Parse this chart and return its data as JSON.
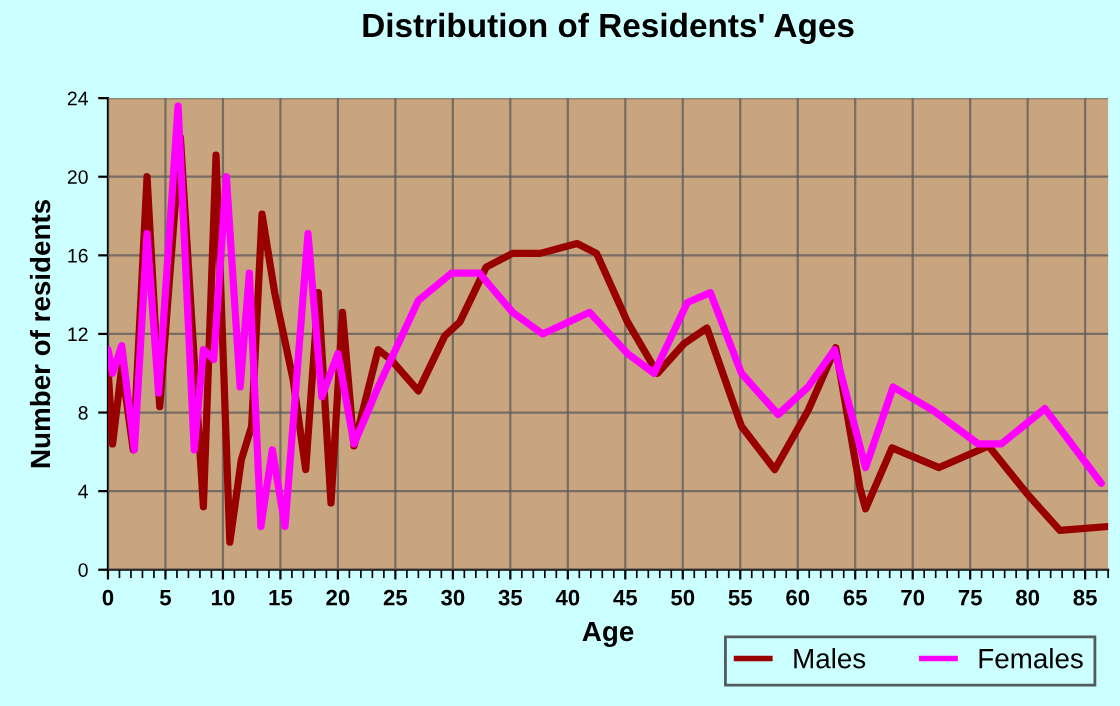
{
  "chart_data": {
    "type": "line",
    "title": "Distribution of Residents' Ages",
    "xlabel": "Age",
    "ylabel": "Number of residents",
    "xlim": [
      0,
      87
    ],
    "xticks": [
      0,
      5,
      10,
      15,
      20,
      25,
      30,
      35,
      40,
      45,
      50,
      55,
      60,
      65,
      70,
      75,
      80,
      85
    ],
    "ylim": [
      0,
      24
    ],
    "yticks": [
      0,
      4,
      8,
      12,
      16,
      20,
      24
    ],
    "grid": true,
    "legend": "bottom right",
    "line_style": "solid",
    "marker": "none",
    "series": [
      {
        "name": "Males",
        "color": "#990000",
        "x": [
          0,
          0.4,
          1.2,
          2.2,
          3.4,
          4.5,
          6.3,
          8.3,
          9.4,
          10.6,
          11.6,
          12.5,
          13.4,
          14.5,
          16.1,
          17.2,
          18.3,
          19.4,
          20.4,
          21.4,
          23.5,
          24.6,
          27,
          29.3,
          30.6,
          32.9,
          35.2,
          37.6,
          40.8,
          42.5,
          45.2,
          47.8,
          50.1,
          52.1,
          55.1,
          58,
          60.9,
          63.3,
          65.4,
          65.9,
          68.2,
          72.3,
          76.6,
          79.9,
          82.8,
          87
        ],
        "values": [
          10.3,
          6.4,
          10.3,
          6.1,
          20,
          8.3,
          22,
          3.2,
          21.1,
          1.4,
          5.6,
          7.3,
          18.1,
          14.1,
          9.7,
          5.1,
          14.1,
          3.4,
          13.1,
          6.3,
          11.2,
          10.7,
          9.1,
          11.9,
          12.6,
          15.4,
          16.1,
          16.1,
          16.6,
          16.1,
          12.6,
          10,
          11.5,
          12.3,
          7.3,
          5.1,
          8.1,
          11.3,
          4.2,
          3.1,
          6.2,
          5.2,
          6.3,
          3.9,
          2,
          2.2
        ]
      },
      {
        "name": "Females",
        "color": "#ff00ff",
        "x": [
          0,
          0.4,
          1.2,
          2.3,
          3.4,
          4.4,
          6.1,
          7.5,
          8.3,
          9.2,
          10.3,
          11.5,
          12.3,
          13.3,
          14.3,
          15.4,
          17.4,
          18.6,
          20,
          21.4,
          23.5,
          27,
          29.9,
          32.3,
          35.2,
          37.8,
          41.9,
          45.2,
          47.5,
          50.4,
          52.4,
          55.1,
          58.3,
          60.9,
          63.2,
          65.9,
          68.3,
          71.8,
          75.7,
          77.7,
          81.5,
          86.4
        ],
        "values": [
          11.2,
          10,
          11.4,
          6.1,
          17.1,
          9,
          23.6,
          6.1,
          11.2,
          10.7,
          20,
          9.3,
          15.1,
          2.2,
          6.1,
          2.2,
          17.1,
          8.8,
          11,
          6.4,
          9.3,
          13.7,
          15.1,
          15.1,
          13.1,
          12,
          13.1,
          11,
          10,
          13.6,
          14.1,
          10,
          7.9,
          9.3,
          11.2,
          5.2,
          9.3,
          8.1,
          6.4,
          6.4,
          8.2,
          4.4
        ]
      }
    ]
  }
}
